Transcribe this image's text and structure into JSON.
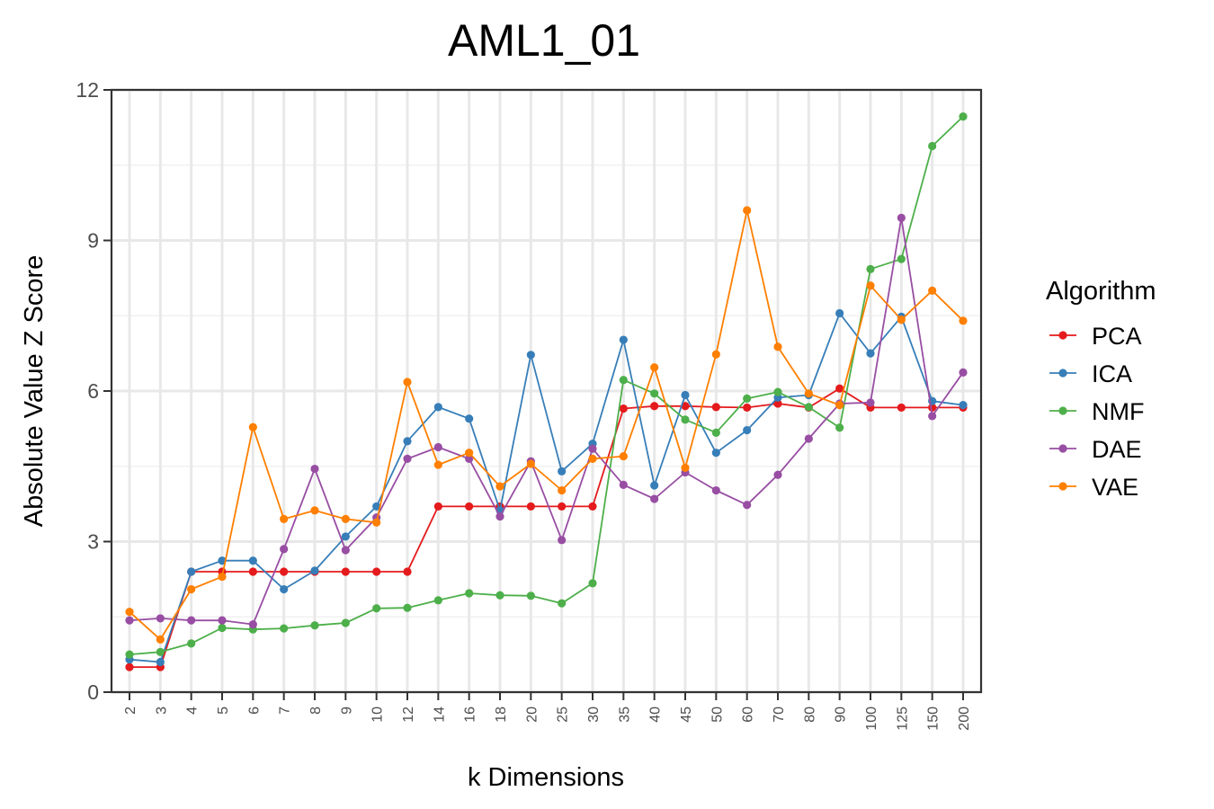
{
  "chart_data": {
    "type": "line",
    "title": "AML1_01",
    "xlabel": "k Dimensions",
    "ylabel": "Absolute Value Z Score",
    "categories": [
      "2",
      "3",
      "4",
      "5",
      "6",
      "7",
      "8",
      "9",
      "10",
      "12",
      "14",
      "16",
      "18",
      "20",
      "25",
      "30",
      "35",
      "40",
      "45",
      "50",
      "60",
      "70",
      "80",
      "90",
      "100",
      "125",
      "150",
      "200"
    ],
    "ylim": [
      0,
      12
    ],
    "yticks": [
      0,
      3,
      6,
      9,
      12
    ],
    "grid": true,
    "legend": {
      "title": "Algorithm",
      "position": "right"
    },
    "series": [
      {
        "name": "PCA",
        "color": "#e41a1c",
        "values": [
          0.5,
          0.5,
          2.4,
          2.4,
          2.4,
          2.4,
          2.4,
          2.4,
          2.4,
          2.4,
          3.7,
          3.7,
          3.7,
          3.7,
          3.7,
          3.7,
          5.65,
          5.7,
          5.7,
          5.68,
          5.67,
          5.75,
          5.67,
          6.05,
          5.67,
          5.67,
          5.67,
          5.67
        ]
      },
      {
        "name": "ICA",
        "color": "#377eb8",
        "values": [
          0.65,
          0.6,
          2.4,
          2.62,
          2.62,
          2.05,
          2.42,
          3.1,
          3.7,
          5.0,
          5.68,
          5.45,
          3.62,
          6.72,
          4.4,
          4.95,
          7.02,
          4.12,
          5.92,
          4.77,
          5.22,
          5.87,
          5.92,
          7.55,
          6.75,
          7.48,
          5.8,
          5.72
        ]
      },
      {
        "name": "NMF",
        "color": "#4daf4a",
        "values": [
          0.75,
          0.8,
          0.97,
          1.28,
          1.25,
          1.27,
          1.33,
          1.38,
          1.67,
          1.68,
          1.83,
          1.97,
          1.93,
          1.92,
          1.77,
          2.17,
          6.22,
          5.95,
          5.43,
          5.17,
          5.85,
          5.98,
          5.68,
          5.27,
          8.43,
          8.63,
          10.88,
          11.47
        ]
      },
      {
        "name": "DAE",
        "color": "#984ea3",
        "values": [
          1.43,
          1.47,
          1.43,
          1.43,
          1.35,
          2.85,
          4.45,
          2.83,
          3.48,
          4.65,
          4.88,
          4.65,
          3.5,
          4.6,
          3.03,
          4.85,
          4.13,
          3.85,
          4.38,
          4.02,
          3.73,
          4.33,
          5.05,
          5.75,
          5.77,
          9.45,
          5.5,
          6.37
        ]
      },
      {
        "name": "VAE",
        "color": "#ff7f00",
        "values": [
          1.6,
          1.05,
          2.05,
          2.3,
          5.28,
          3.45,
          3.62,
          3.45,
          3.38,
          6.18,
          4.53,
          4.77,
          4.1,
          4.55,
          4.02,
          4.65,
          4.7,
          6.47,
          4.47,
          6.73,
          9.6,
          6.88,
          5.95,
          5.72,
          8.1,
          7.42,
          8.0,
          7.4
        ]
      }
    ]
  }
}
